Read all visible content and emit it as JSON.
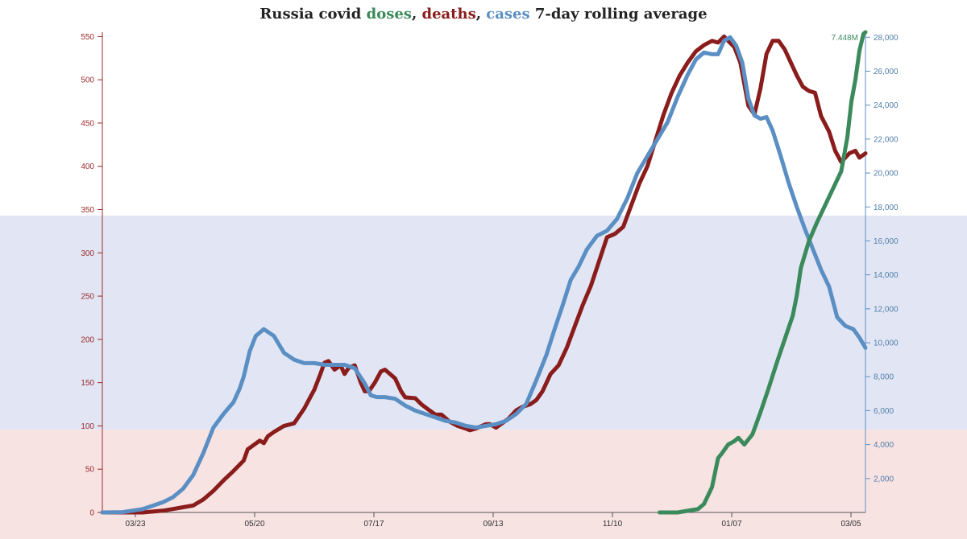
{
  "colors": {
    "doses": "#3b8a5c",
    "deaths": "#8a1c1c",
    "cases": "#5b8fc4",
    "band_blue": "#e2e6f4",
    "band_pink": "#f8e3e3"
  },
  "chart_data": {
    "type": "line",
    "title": {
      "prefix": "Russia covid ",
      "doses": "doses",
      "sep1": ", ",
      "deaths": "deaths",
      "sep2": ", ",
      "cases": "cases",
      "suffix": " 7-day rolling average"
    },
    "annotation": "7.448M",
    "x_ticks": [
      "03/23",
      "05/20",
      "07/17",
      "09/13",
      "11/10",
      "01/07",
      "03/05"
    ],
    "y_left": {
      "ticks": [
        0,
        50,
        100,
        150,
        200,
        250,
        300,
        350,
        400,
        450,
        500,
        550
      ],
      "range": [
        0,
        555
      ]
    },
    "y_right": {
      "ticks": [
        2000,
        4000,
        6000,
        8000,
        10000,
        12000,
        14000,
        16000,
        18000,
        20000,
        22000,
        24000,
        26000,
        28000
      ],
      "tick_labels": [
        "2,000",
        "4,000",
        "6,000",
        "8,000",
        "10,000",
        "12,000",
        "14,000",
        "16,000",
        "18,000",
        "20,000",
        "22,000",
        "24,000",
        "26,000",
        "28,000"
      ],
      "range": [
        0,
        28300
      ]
    },
    "series": [
      {
        "name": "deaths",
        "axis": "left",
        "points": [
          [
            0,
            0
          ],
          [
            10,
            0
          ],
          [
            20,
            0
          ],
          [
            25,
            1
          ],
          [
            30,
            2
          ],
          [
            35,
            4
          ],
          [
            40,
            6
          ],
          [
            45,
            8
          ],
          [
            50,
            15
          ],
          [
            55,
            25
          ],
          [
            60,
            37
          ],
          [
            65,
            48
          ],
          [
            70,
            60
          ],
          [
            72,
            73
          ],
          [
            75,
            78
          ],
          [
            78,
            83
          ],
          [
            80,
            80
          ],
          [
            82,
            88
          ],
          [
            85,
            93
          ],
          [
            90,
            100
          ],
          [
            95,
            103
          ],
          [
            100,
            120
          ],
          [
            105,
            142
          ],
          [
            108,
            160
          ],
          [
            110,
            173
          ],
          [
            112,
            175
          ],
          [
            115,
            165
          ],
          [
            118,
            170
          ],
          [
            120,
            160
          ],
          [
            122,
            167
          ],
          [
            125,
            170
          ],
          [
            128,
            150
          ],
          [
            130,
            140
          ],
          [
            132,
            140
          ],
          [
            135,
            150
          ],
          [
            138,
            163
          ],
          [
            140,
            165
          ],
          [
            145,
            155
          ],
          [
            148,
            140
          ],
          [
            150,
            133
          ],
          [
            155,
            132
          ],
          [
            158,
            125
          ],
          [
            162,
            118
          ],
          [
            165,
            113
          ],
          [
            168,
            113
          ],
          [
            172,
            105
          ],
          [
            176,
            100
          ],
          [
            180,
            97
          ],
          [
            182,
            95
          ],
          [
            185,
            97
          ],
          [
            188,
            100
          ],
          [
            190,
            102
          ],
          [
            192,
            102
          ],
          [
            195,
            98
          ],
          [
            198,
            103
          ],
          [
            201,
            108
          ],
          [
            205,
            118
          ],
          [
            208,
            122
          ],
          [
            212,
            125
          ],
          [
            215,
            130
          ],
          [
            218,
            140
          ],
          [
            222,
            160
          ],
          [
            226,
            170
          ],
          [
            230,
            190
          ],
          [
            234,
            215
          ],
          [
            238,
            240
          ],
          [
            242,
            262
          ],
          [
            246,
            290
          ],
          [
            250,
            318
          ],
          [
            254,
            322
          ],
          [
            258,
            330
          ],
          [
            262,
            355
          ],
          [
            266,
            380
          ],
          [
            270,
            400
          ],
          [
            274,
            430
          ],
          [
            278,
            460
          ],
          [
            282,
            485
          ],
          [
            286,
            505
          ],
          [
            290,
            520
          ],
          [
            294,
            533
          ],
          [
            298,
            540
          ],
          [
            302,
            545
          ],
          [
            305,
            543
          ],
          [
            308,
            550
          ],
          [
            310,
            545
          ],
          [
            313,
            538
          ],
          [
            316,
            520
          ],
          [
            320,
            470
          ],
          [
            323,
            460
          ],
          [
            326,
            490
          ],
          [
            329,
            530
          ],
          [
            332,
            545
          ],
          [
            335,
            545
          ],
          [
            338,
            535
          ],
          [
            341,
            520
          ],
          [
            344,
            505
          ],
          [
            347,
            492
          ],
          [
            350,
            487
          ],
          [
            353,
            485
          ],
          [
            356,
            458
          ],
          [
            360,
            440
          ],
          [
            363,
            418
          ],
          [
            366,
            405
          ],
          [
            370,
            415
          ],
          [
            373,
            418
          ],
          [
            375,
            410
          ],
          [
            378,
            415
          ]
        ]
      },
      {
        "name": "cases",
        "axis": "right",
        "points": [
          [
            0,
            0
          ],
          [
            10,
            20
          ],
          [
            20,
            200
          ],
          [
            25,
            400
          ],
          [
            30,
            600
          ],
          [
            35,
            900
          ],
          [
            40,
            1400
          ],
          [
            45,
            2200
          ],
          [
            50,
            3500
          ],
          [
            55,
            5000
          ],
          [
            60,
            5800
          ],
          [
            65,
            6500
          ],
          [
            68,
            7300
          ],
          [
            70,
            8000
          ],
          [
            73,
            9500
          ],
          [
            76,
            10400
          ],
          [
            80,
            10800
          ],
          [
            85,
            10400
          ],
          [
            90,
            9400
          ],
          [
            95,
            9000
          ],
          [
            100,
            8800
          ],
          [
            105,
            8800
          ],
          [
            110,
            8700
          ],
          [
            115,
            8700
          ],
          [
            120,
            8700
          ],
          [
            125,
            8500
          ],
          [
            130,
            7600
          ],
          [
            133,
            6900
          ],
          [
            136,
            6800
          ],
          [
            140,
            6800
          ],
          [
            145,
            6700
          ],
          [
            150,
            6300
          ],
          [
            155,
            6000
          ],
          [
            160,
            5800
          ],
          [
            165,
            5600
          ],
          [
            170,
            5400
          ],
          [
            175,
            5300
          ],
          [
            180,
            5100
          ],
          [
            185,
            5000
          ],
          [
            190,
            5100
          ],
          [
            195,
            5200
          ],
          [
            200,
            5400
          ],
          [
            205,
            5800
          ],
          [
            210,
            6400
          ],
          [
            215,
            7800
          ],
          [
            220,
            9300
          ],
          [
            224,
            10800
          ],
          [
            228,
            12200
          ],
          [
            232,
            13700
          ],
          [
            236,
            14500
          ],
          [
            240,
            15500
          ],
          [
            245,
            16300
          ],
          [
            250,
            16600
          ],
          [
            255,
            17300
          ],
          [
            260,
            18500
          ],
          [
            265,
            20000
          ],
          [
            270,
            21000
          ],
          [
            275,
            22000
          ],
          [
            280,
            23000
          ],
          [
            285,
            24500
          ],
          [
            290,
            25800
          ],
          [
            294,
            26700
          ],
          [
            298,
            27100
          ],
          [
            302,
            27000
          ],
          [
            305,
            27000
          ],
          [
            308,
            27800
          ],
          [
            311,
            28000
          ],
          [
            314,
            27500
          ],
          [
            317,
            26500
          ],
          [
            320,
            24400
          ],
          [
            323,
            23400
          ],
          [
            326,
            23200
          ],
          [
            329,
            23300
          ],
          [
            332,
            22500
          ],
          [
            336,
            21000
          ],
          [
            340,
            19400
          ],
          [
            344,
            18000
          ],
          [
            348,
            16700
          ],
          [
            352,
            15500
          ],
          [
            356,
            14300
          ],
          [
            360,
            13300
          ],
          [
            364,
            11500
          ],
          [
            368,
            11000
          ],
          [
            372,
            10800
          ],
          [
            375,
            10300
          ],
          [
            378,
            9700
          ]
        ]
      },
      {
        "name": "doses",
        "axis": "right",
        "points": [
          [
            276,
            0
          ],
          [
            285,
            0
          ],
          [
            290,
            100
          ],
          [
            295,
            200
          ],
          [
            298,
            500
          ],
          [
            302,
            1500
          ],
          [
            305,
            3200
          ],
          [
            307,
            3500
          ],
          [
            310,
            4000
          ],
          [
            313,
            4200
          ],
          [
            315,
            4400
          ],
          [
            318,
            4000
          ],
          [
            322,
            4600
          ],
          [
            326,
            5900
          ],
          [
            330,
            7300
          ],
          [
            334,
            8800
          ],
          [
            338,
            10200
          ],
          [
            342,
            11600
          ],
          [
            344,
            12800
          ],
          [
            346,
            14400
          ],
          [
            350,
            16000
          ],
          [
            354,
            17100
          ],
          [
            358,
            18100
          ],
          [
            362,
            19100
          ],
          [
            366,
            20100
          ],
          [
            369,
            22100
          ],
          [
            371,
            24200
          ],
          [
            373,
            25500
          ],
          [
            375,
            27200
          ],
          [
            377,
            28200
          ],
          [
            378,
            28300
          ]
        ]
      }
    ]
  }
}
